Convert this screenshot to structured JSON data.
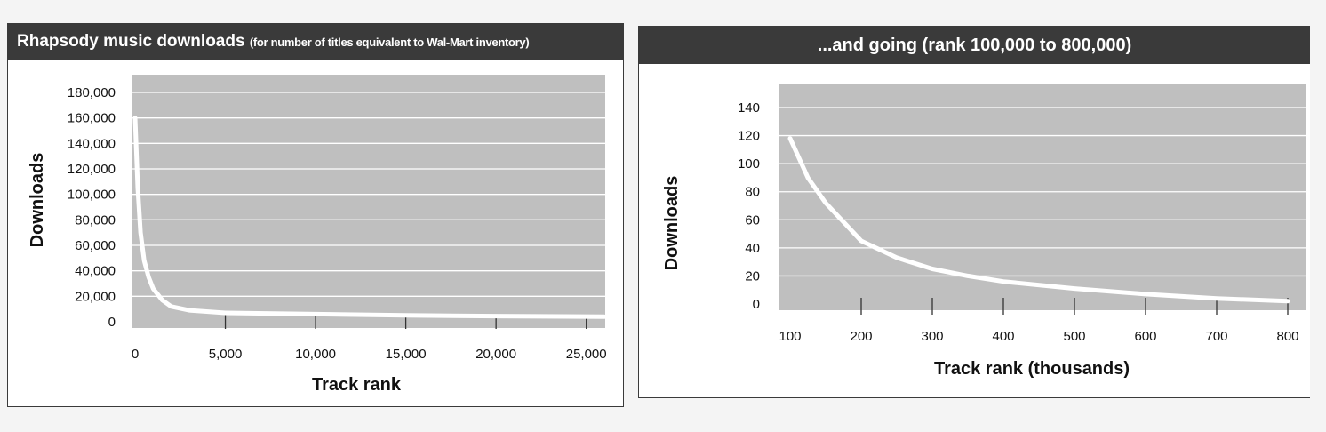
{
  "chart_data": [
    {
      "type": "line",
      "title": "Rhapsody music downloads",
      "subtitle": "(for number of titles equivalent to Wal-Mart inventory)",
      "xlabel": "Track rank",
      "ylabel": "Downloads",
      "xlim": [
        0,
        26000
      ],
      "ylim": [
        0,
        180000
      ],
      "x_ticks": [
        0,
        5000,
        10000,
        15000,
        20000,
        25000
      ],
      "x_tick_labels": [
        "0",
        "5,000",
        "10,000",
        "15,000",
        "20,000",
        "25,000"
      ],
      "y_ticks": [
        0,
        20000,
        40000,
        60000,
        80000,
        100000,
        120000,
        140000,
        160000,
        180000
      ],
      "y_tick_labels": [
        "0",
        "20,000",
        "40,000",
        "60,000",
        "80,000",
        "100,000",
        "120,000",
        "140,000",
        "160,000",
        "180,000"
      ],
      "grid": true,
      "series": [
        {
          "x": [
            0,
            150,
            300,
            500,
            750,
            1000,
            1500,
            2000,
            3000,
            5000,
            10000,
            15000,
            20000,
            26000
          ],
          "y": [
            160000,
            105000,
            70000,
            48000,
            35000,
            26000,
            17000,
            12000,
            9000,
            7000,
            6000,
            5000,
            4500,
            4000
          ]
        }
      ]
    },
    {
      "type": "line",
      "title": "...and going (rank 100,000 to 800,000)",
      "xlabel": "Track rank (thousands)",
      "ylabel": "Downloads",
      "xlim": [
        100,
        800
      ],
      "ylim": [
        0,
        140
      ],
      "x_ticks": [
        100,
        200,
        300,
        400,
        500,
        600,
        700,
        800
      ],
      "x_tick_labels": [
        "100",
        "200",
        "300",
        "400",
        "500",
        "600",
        "700",
        "800"
      ],
      "y_ticks": [
        0,
        20,
        40,
        60,
        80,
        100,
        120,
        140
      ],
      "y_tick_labels": [
        "0",
        "20",
        "40",
        "60",
        "80",
        "100",
        "120",
        "140"
      ],
      "grid": true,
      "series": [
        {
          "x": [
            100,
            125,
            150,
            200,
            250,
            300,
            350,
            400,
            500,
            600,
            700,
            800
          ],
          "y": [
            118,
            90,
            72,
            45,
            33,
            25,
            20,
            16,
            11,
            7,
            4,
            2
          ]
        }
      ]
    }
  ]
}
